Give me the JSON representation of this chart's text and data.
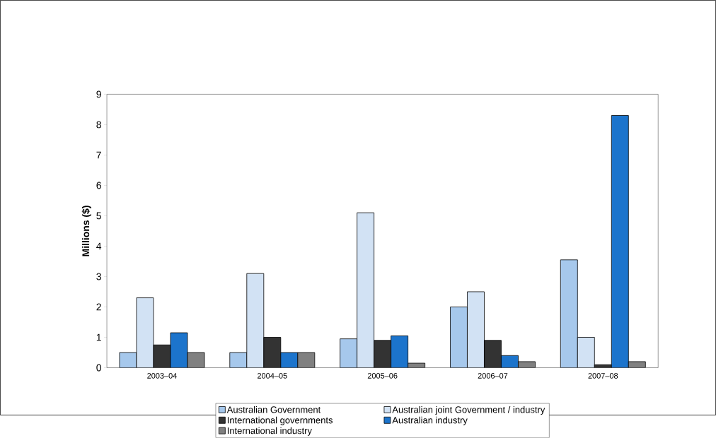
{
  "chart_data": {
    "type": "bar",
    "ylabel": "Millions ($)",
    "categories": [
      "2003–04",
      "2004–05",
      "2005–06",
      "2006–07",
      "2007–08"
    ],
    "series": [
      {
        "name": "Australian Government",
        "color": "#a6c8ec",
        "values": [
          0.5,
          0.5,
          0.95,
          2.0,
          3.55
        ]
      },
      {
        "name": "Australian joint Government / industry",
        "color": "#d2e2f4",
        "values": [
          2.3,
          3.1,
          5.1,
          2.5,
          1.0
        ]
      },
      {
        "name": "International governments",
        "color": "#333333",
        "values": [
          0.75,
          1.0,
          0.9,
          0.9,
          0.1
        ]
      },
      {
        "name": "Australian industry",
        "color": "#1c74cc",
        "values": [
          1.15,
          0.5,
          1.05,
          0.4,
          8.3
        ]
      },
      {
        "name": "International industry",
        "color": "#808080",
        "values": [
          0.5,
          0.5,
          0.15,
          0.2,
          0.2
        ]
      }
    ],
    "ylim": [
      0,
      9
    ],
    "yticks": [
      0,
      1,
      2,
      3,
      4,
      5,
      6,
      7,
      8,
      9
    ],
    "grid": false,
    "legend": "bottom"
  }
}
